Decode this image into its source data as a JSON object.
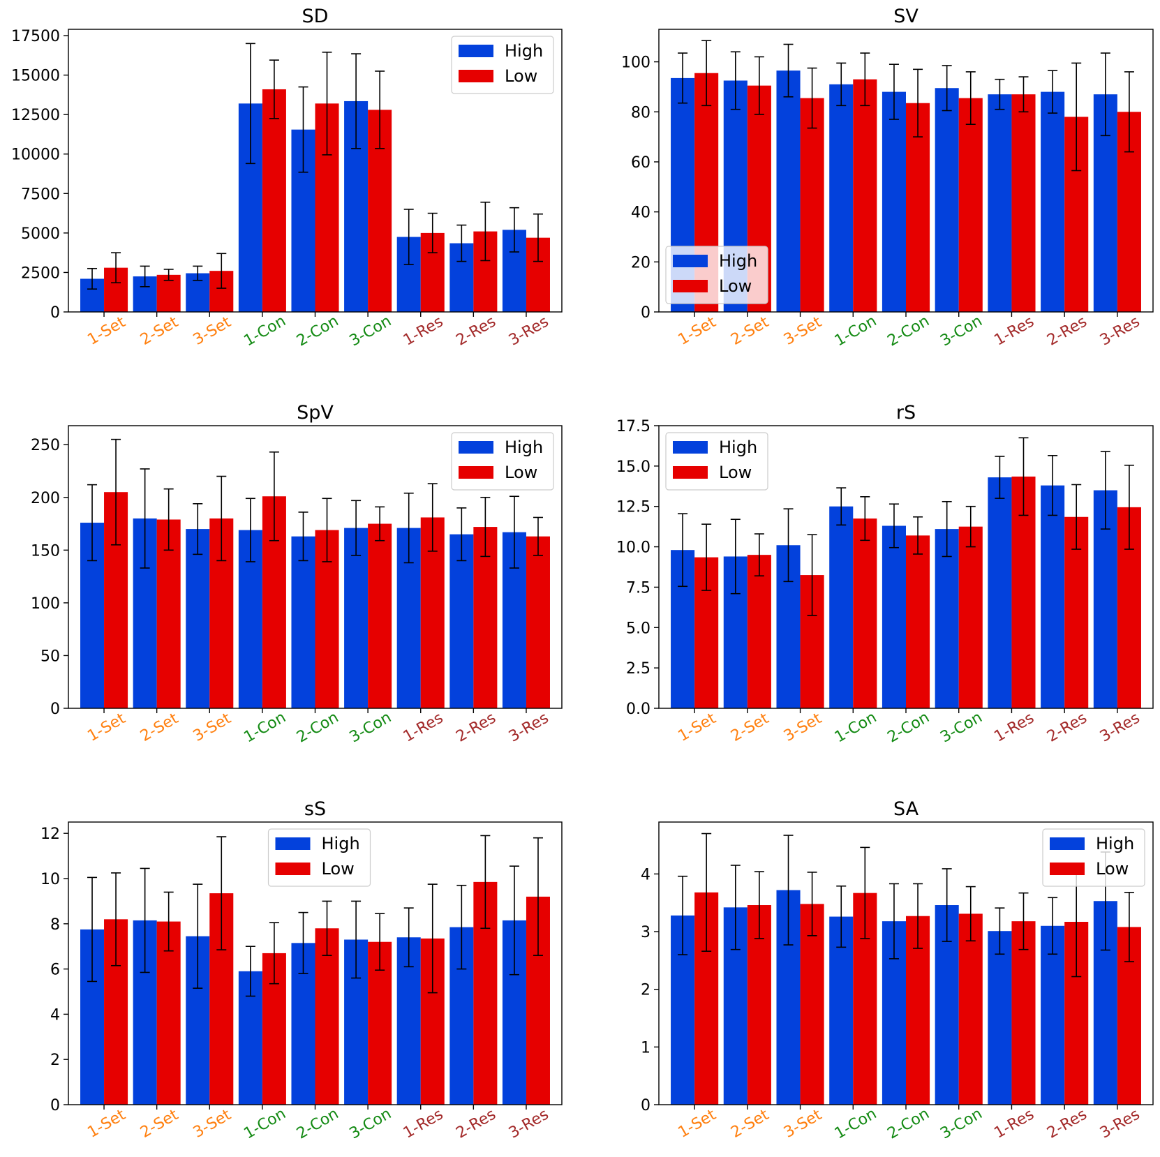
{
  "colors": {
    "high": "#0341dc",
    "low": "#e60000",
    "errorbar": "#000000",
    "set_tick": "#ff7f0e",
    "con_tick": "#138a13",
    "res_tick": "#a32a2a"
  },
  "chart_data": [
    {
      "type": "bar",
      "title": "SD",
      "categories": [
        "1-Set",
        "2-Set",
        "3-Set",
        "1-Con",
        "2-Con",
        "3-Con",
        "1-Res",
        "2-Res",
        "3-Res"
      ],
      "category_groups": [
        "set",
        "set",
        "set",
        "con",
        "con",
        "con",
        "res",
        "res",
        "res"
      ],
      "ylim": [
        0,
        17900
      ],
      "yticks": [
        0,
        2500,
        5000,
        7500,
        10000,
        12500,
        15000,
        17500
      ],
      "ytick_labels": [
        "0",
        "2500",
        "5000",
        "7500",
        "10000",
        "12500",
        "15000",
        "17500"
      ],
      "legend_position": "top-right",
      "series": [
        {
          "name": "High",
          "values": [
            2100,
            2250,
            2450,
            13200,
            11550,
            13350,
            4750,
            4350,
            5200
          ],
          "errors": [
            650,
            650,
            450,
            3800,
            2700,
            3000,
            1750,
            1150,
            1400
          ]
        },
        {
          "name": "Low",
          "values": [
            2800,
            2350,
            2600,
            14100,
            13200,
            12800,
            5000,
            5100,
            4700
          ],
          "errors": [
            950,
            350,
            1100,
            1850,
            3250,
            2450,
            1250,
            1850,
            1500
          ]
        }
      ]
    },
    {
      "type": "bar",
      "title": "SV",
      "categories": [
        "1-Set",
        "2-Set",
        "3-Set",
        "1-Con",
        "2-Con",
        "3-Con",
        "1-Res",
        "2-Res",
        "3-Res"
      ],
      "category_groups": [
        "set",
        "set",
        "set",
        "con",
        "con",
        "con",
        "res",
        "res",
        "res"
      ],
      "ylim": [
        0,
        113
      ],
      "yticks": [
        0,
        20,
        40,
        60,
        80,
        100
      ],
      "ytick_labels": [
        "0",
        "20",
        "40",
        "60",
        "80",
        "100"
      ],
      "legend_position": "bottom-left",
      "series": [
        {
          "name": "High",
          "values": [
            93.5,
            92.5,
            96.5,
            91,
            88,
            89.5,
            87,
            88,
            87
          ],
          "errors": [
            10,
            11.5,
            10.5,
            8.5,
            11,
            9,
            6,
            8.5,
            16.5
          ]
        },
        {
          "name": "Low",
          "values": [
            95.5,
            90.5,
            85.5,
            93,
            83.5,
            85.5,
            87,
            78,
            80
          ],
          "errors": [
            13,
            11.5,
            12,
            10.5,
            13.5,
            10.5,
            7,
            21.5,
            16
          ]
        }
      ]
    },
    {
      "type": "bar",
      "title": "SpV",
      "categories": [
        "1-Set",
        "2-Set",
        "3-Set",
        "1-Con",
        "2-Con",
        "3-Con",
        "1-Res",
        "2-Res",
        "3-Res"
      ],
      "category_groups": [
        "set",
        "set",
        "set",
        "con",
        "con",
        "con",
        "res",
        "res",
        "res"
      ],
      "ylim": [
        0,
        268
      ],
      "yticks": [
        0,
        50,
        100,
        150,
        200,
        250
      ],
      "ytick_labels": [
        "0",
        "50",
        "100",
        "150",
        "200",
        "250"
      ],
      "legend_position": "top-right",
      "series": [
        {
          "name": "High",
          "values": [
            176,
            180,
            170,
            169,
            163,
            171,
            171,
            165,
            167
          ],
          "errors": [
            36,
            47,
            24,
            30,
            23,
            26,
            33,
            25,
            34
          ]
        },
        {
          "name": "Low",
          "values": [
            205,
            179,
            180,
            201,
            169,
            175,
            181,
            172,
            163
          ],
          "errors": [
            50,
            29,
            40,
            42,
            30,
            16,
            32,
            28,
            18
          ]
        }
      ]
    },
    {
      "type": "bar",
      "title": "rS",
      "categories": [
        "1-Set",
        "2-Set",
        "3-Set",
        "1-Con",
        "2-Con",
        "3-Con",
        "1-Res",
        "2-Res",
        "3-Res"
      ],
      "category_groups": [
        "set",
        "set",
        "set",
        "con",
        "con",
        "con",
        "res",
        "res",
        "res"
      ],
      "ylim": [
        0,
        17.5
      ],
      "yticks": [
        0,
        2.5,
        5,
        7.5,
        10,
        12.5,
        15,
        17.5
      ],
      "ytick_labels": [
        "0.0",
        "2.5",
        "5.0",
        "7.5",
        "10.0",
        "12.5",
        "15.0",
        "17.5"
      ],
      "legend_position": "top-left",
      "series": [
        {
          "name": "High",
          "values": [
            9.8,
            9.4,
            10.1,
            12.5,
            11.3,
            11.1,
            14.3,
            13.8,
            13.5
          ],
          "errors": [
            2.25,
            2.3,
            2.25,
            1.15,
            1.35,
            1.7,
            1.3,
            1.85,
            2.4
          ]
        },
        {
          "name": "Low",
          "values": [
            9.35,
            9.5,
            8.25,
            11.75,
            10.7,
            11.25,
            14.35,
            11.85,
            12.45
          ],
          "errors": [
            2.05,
            1.3,
            2.5,
            1.35,
            1.15,
            1.25,
            2.4,
            2.0,
            2.6
          ]
        }
      ]
    },
    {
      "type": "bar",
      "title": "sS",
      "categories": [
        "1-Set",
        "2-Set",
        "3-Set",
        "1-Con",
        "2-Con",
        "3-Con",
        "1-Res",
        "2-Res",
        "3-Res"
      ],
      "category_groups": [
        "set",
        "set",
        "set",
        "con",
        "con",
        "con",
        "res",
        "res",
        "res"
      ],
      "ylim": [
        0,
        12.5
      ],
      "yticks": [
        0,
        2,
        4,
        6,
        8,
        10,
        12
      ],
      "ytick_labels": [
        "0",
        "2",
        "4",
        "6",
        "8",
        "10",
        "12"
      ],
      "legend_position": "top-center",
      "series": [
        {
          "name": "High",
          "values": [
            7.75,
            8.15,
            7.45,
            5.9,
            7.15,
            7.3,
            7.4,
            7.85,
            8.15
          ],
          "errors": [
            2.3,
            2.3,
            2.3,
            1.1,
            1.35,
            1.7,
            1.3,
            1.85,
            2.4
          ]
        },
        {
          "name": "Low",
          "values": [
            8.2,
            8.1,
            9.35,
            6.7,
            7.8,
            7.2,
            7.35,
            9.85,
            9.2
          ],
          "errors": [
            2.05,
            1.3,
            2.5,
            1.35,
            1.2,
            1.25,
            2.4,
            2.05,
            2.6
          ]
        }
      ]
    },
    {
      "type": "bar",
      "title": "SA",
      "categories": [
        "1-Set",
        "2-Set",
        "3-Set",
        "1-Con",
        "2-Con",
        "3-Con",
        "1-Res",
        "2-Res",
        "3-Res"
      ],
      "category_groups": [
        "set",
        "set",
        "set",
        "con",
        "con",
        "con",
        "res",
        "res",
        "res"
      ],
      "ylim": [
        0,
        4.9
      ],
      "yticks": [
        0,
        1,
        2,
        3,
        4
      ],
      "ytick_labels": [
        "0",
        "1",
        "2",
        "3",
        "4"
      ],
      "legend_position": "top-right",
      "series": [
        {
          "name": "High",
          "values": [
            3.28,
            3.42,
            3.72,
            3.26,
            3.18,
            3.46,
            3.01,
            3.1,
            3.53
          ],
          "errors": [
            0.68,
            0.73,
            0.95,
            0.53,
            0.65,
            0.63,
            0.4,
            0.49,
            0.85
          ]
        },
        {
          "name": "Low",
          "values": [
            3.68,
            3.46,
            3.48,
            3.67,
            3.27,
            3.31,
            3.18,
            3.17,
            3.08
          ],
          "errors": [
            1.02,
            0.58,
            0.55,
            0.79,
            0.56,
            0.47,
            0.49,
            0.95,
            0.6
          ]
        }
      ]
    }
  ]
}
